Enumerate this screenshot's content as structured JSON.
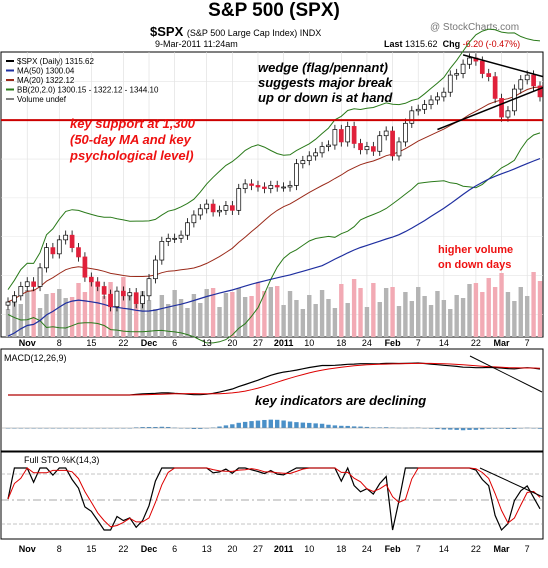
{
  "header": {
    "title": "S&P 500 (SPX)",
    "symbol": "$SPX",
    "symbol_desc": "(S&P 500 Large Cap Index) INDX",
    "date": "9-Mar-2011 11:24am",
    "watermark": "@ StockCharts.com",
    "last_label": "Last",
    "last_value": "1315.62",
    "chg_label": "Chg",
    "chg_value": "-6.20 (-0.47%)"
  },
  "legend": [
    {
      "text": "$SPX (Daily) 1315.62",
      "color": "#000000"
    },
    {
      "text": "MA(50) 1300.04",
      "color": "#1f2fa0"
    },
    {
      "text": "MA(20) 1322.12",
      "color": "#9a2a1a"
    },
    {
      "text": "BB(20,2.0) 1300.15 - 1322.12 - 1344.10",
      "color": "#2a7a1a"
    },
    {
      "text": "Volume undef",
      "color": "#808080"
    }
  ],
  "annotations": {
    "wedge": [
      "wedge (flag/pennant)",
      "suggests major break",
      "up or down is at hand"
    ],
    "support": [
      "key support at 1,300",
      "(50-day MA and key",
      "psychological level)"
    ],
    "volume": [
      "higher volume",
      "on down days"
    ],
    "indicators": "key indicators are declining"
  },
  "colors": {
    "up_candle": "#000000",
    "down_candle": "#e0203a",
    "ma50": "#1f2fa0",
    "ma20": "#9a2a1a",
    "bollinger": "#2a7a1a",
    "volume_up": "#b4b4b4",
    "volume_down": "#f2aab4",
    "support_line": "#cc0000",
    "annotation_text": "#ee1111",
    "macd_line": "#000000",
    "signal_line": "#dd0000",
    "histogram": "#4a90c8"
  },
  "panels": {
    "macd_label": "MACD(12,26,9)",
    "sto_label": "Full STO %K(14,3)"
  },
  "chart_data": {
    "type": "candlestick",
    "price_range": [
      1165,
      1340
    ],
    "support_level": 1300,
    "x_tick_labels": [
      "Nov",
      "8",
      "15",
      "22",
      "Dec",
      "6",
      "13",
      "20",
      "27",
      "2011",
      "10",
      "18",
      "24",
      "Feb",
      "7",
      "14",
      "22",
      "Mar",
      "7"
    ],
    "price_series": [
      1183,
      1187,
      1193,
      1196,
      1193,
      1205,
      1218,
      1214,
      1223,
      1226,
      1218,
      1212,
      1199,
      1196,
      1193,
      1188,
      1180,
      1190,
      1187,
      1189,
      1182,
      1187,
      1198,
      1210,
      1222,
      1224,
      1224,
      1226,
      1234,
      1239,
      1243,
      1246,
      1241,
      1242,
      1245,
      1242,
      1256,
      1259,
      1258,
      1257,
      1256,
      1258,
      1257,
      1257,
      1258,
      1272,
      1274,
      1277,
      1279,
      1283,
      1284,
      1294,
      1286,
      1296,
      1285,
      1281,
      1283,
      1280,
      1290,
      1293,
      1277,
      1286,
      1298,
      1306,
      1307,
      1310,
      1313,
      1315,
      1318,
      1329,
      1330,
      1336,
      1340,
      1338,
      1330,
      1328,
      1314,
      1302,
      1306,
      1320,
      1326,
      1329,
      1322,
      1315
    ],
    "wedge_top": [
      [
        1310,
        1343
      ],
      [
        1343,
        1329
      ]
    ],
    "wedge_bottom": [
      [
        1275,
        1296
      ],
      [
        1343,
        1321
      ]
    ]
  }
}
